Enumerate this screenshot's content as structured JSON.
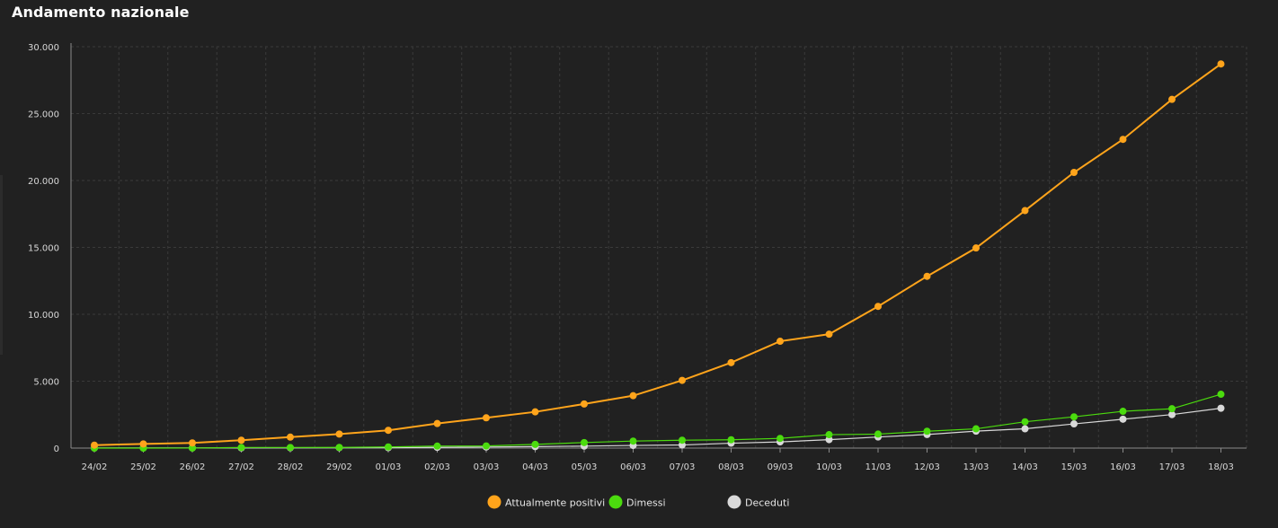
{
  "header": {
    "title": "Andamento nazionale"
  },
  "colors": {
    "background": "#212121",
    "grid": "#3a3a3a",
    "axis": "#8a8a8a",
    "positivi": "#ffa41b",
    "dimessi": "#4bdb0e",
    "deceduti": "#d9d9d9"
  },
  "chart_data": {
    "type": "line",
    "title": "Andamento nazionale",
    "xlabel": "",
    "ylabel": "",
    "ylim": [
      0,
      30000
    ],
    "yticks": [
      "0",
      "5.000",
      "10.000",
      "15.000",
      "20.000",
      "25.000",
      "30.000"
    ],
    "grid": true,
    "legend_position": "bottom",
    "categories": [
      "24/02",
      "25/02",
      "26/02",
      "27/02",
      "28/02",
      "29/02",
      "01/03",
      "02/03",
      "03/03",
      "04/03",
      "05/03",
      "06/03",
      "07/03",
      "08/03",
      "09/03",
      "10/03",
      "11/03",
      "12/03",
      "13/03",
      "14/03",
      "15/03",
      "16/03",
      "17/03",
      "18/03"
    ],
    "series": [
      {
        "name": "Attualmente positivi",
        "color": "#ffa41b",
        "values": [
          221,
          311,
          385,
          588,
          821,
          1049,
          1327,
          1835,
          2263,
          2706,
          3296,
          3916,
          5061,
          6387,
          7985,
          8514,
          10590,
          12839,
          14955,
          17750,
          20603,
          23073,
          26062,
          28710
        ]
      },
      {
        "name": "Dimessi",
        "color": "#4bdb0e",
        "values": [
          1,
          1,
          3,
          45,
          46,
          50,
          83,
          149,
          160,
          276,
          414,
          523,
          589,
          622,
          724,
          1004,
          1045,
          1258,
          1439,
          1966,
          2335,
          2749,
          2941,
          4025
        ]
      },
      {
        "name": "Deceduti",
        "color": "#d9d9d9",
        "values": [
          7,
          10,
          12,
          17,
          21,
          29,
          34,
          52,
          79,
          107,
          148,
          197,
          233,
          366,
          463,
          631,
          827,
          1016,
          1266,
          1441,
          1809,
          2158,
          2503,
          2978
        ]
      }
    ]
  }
}
